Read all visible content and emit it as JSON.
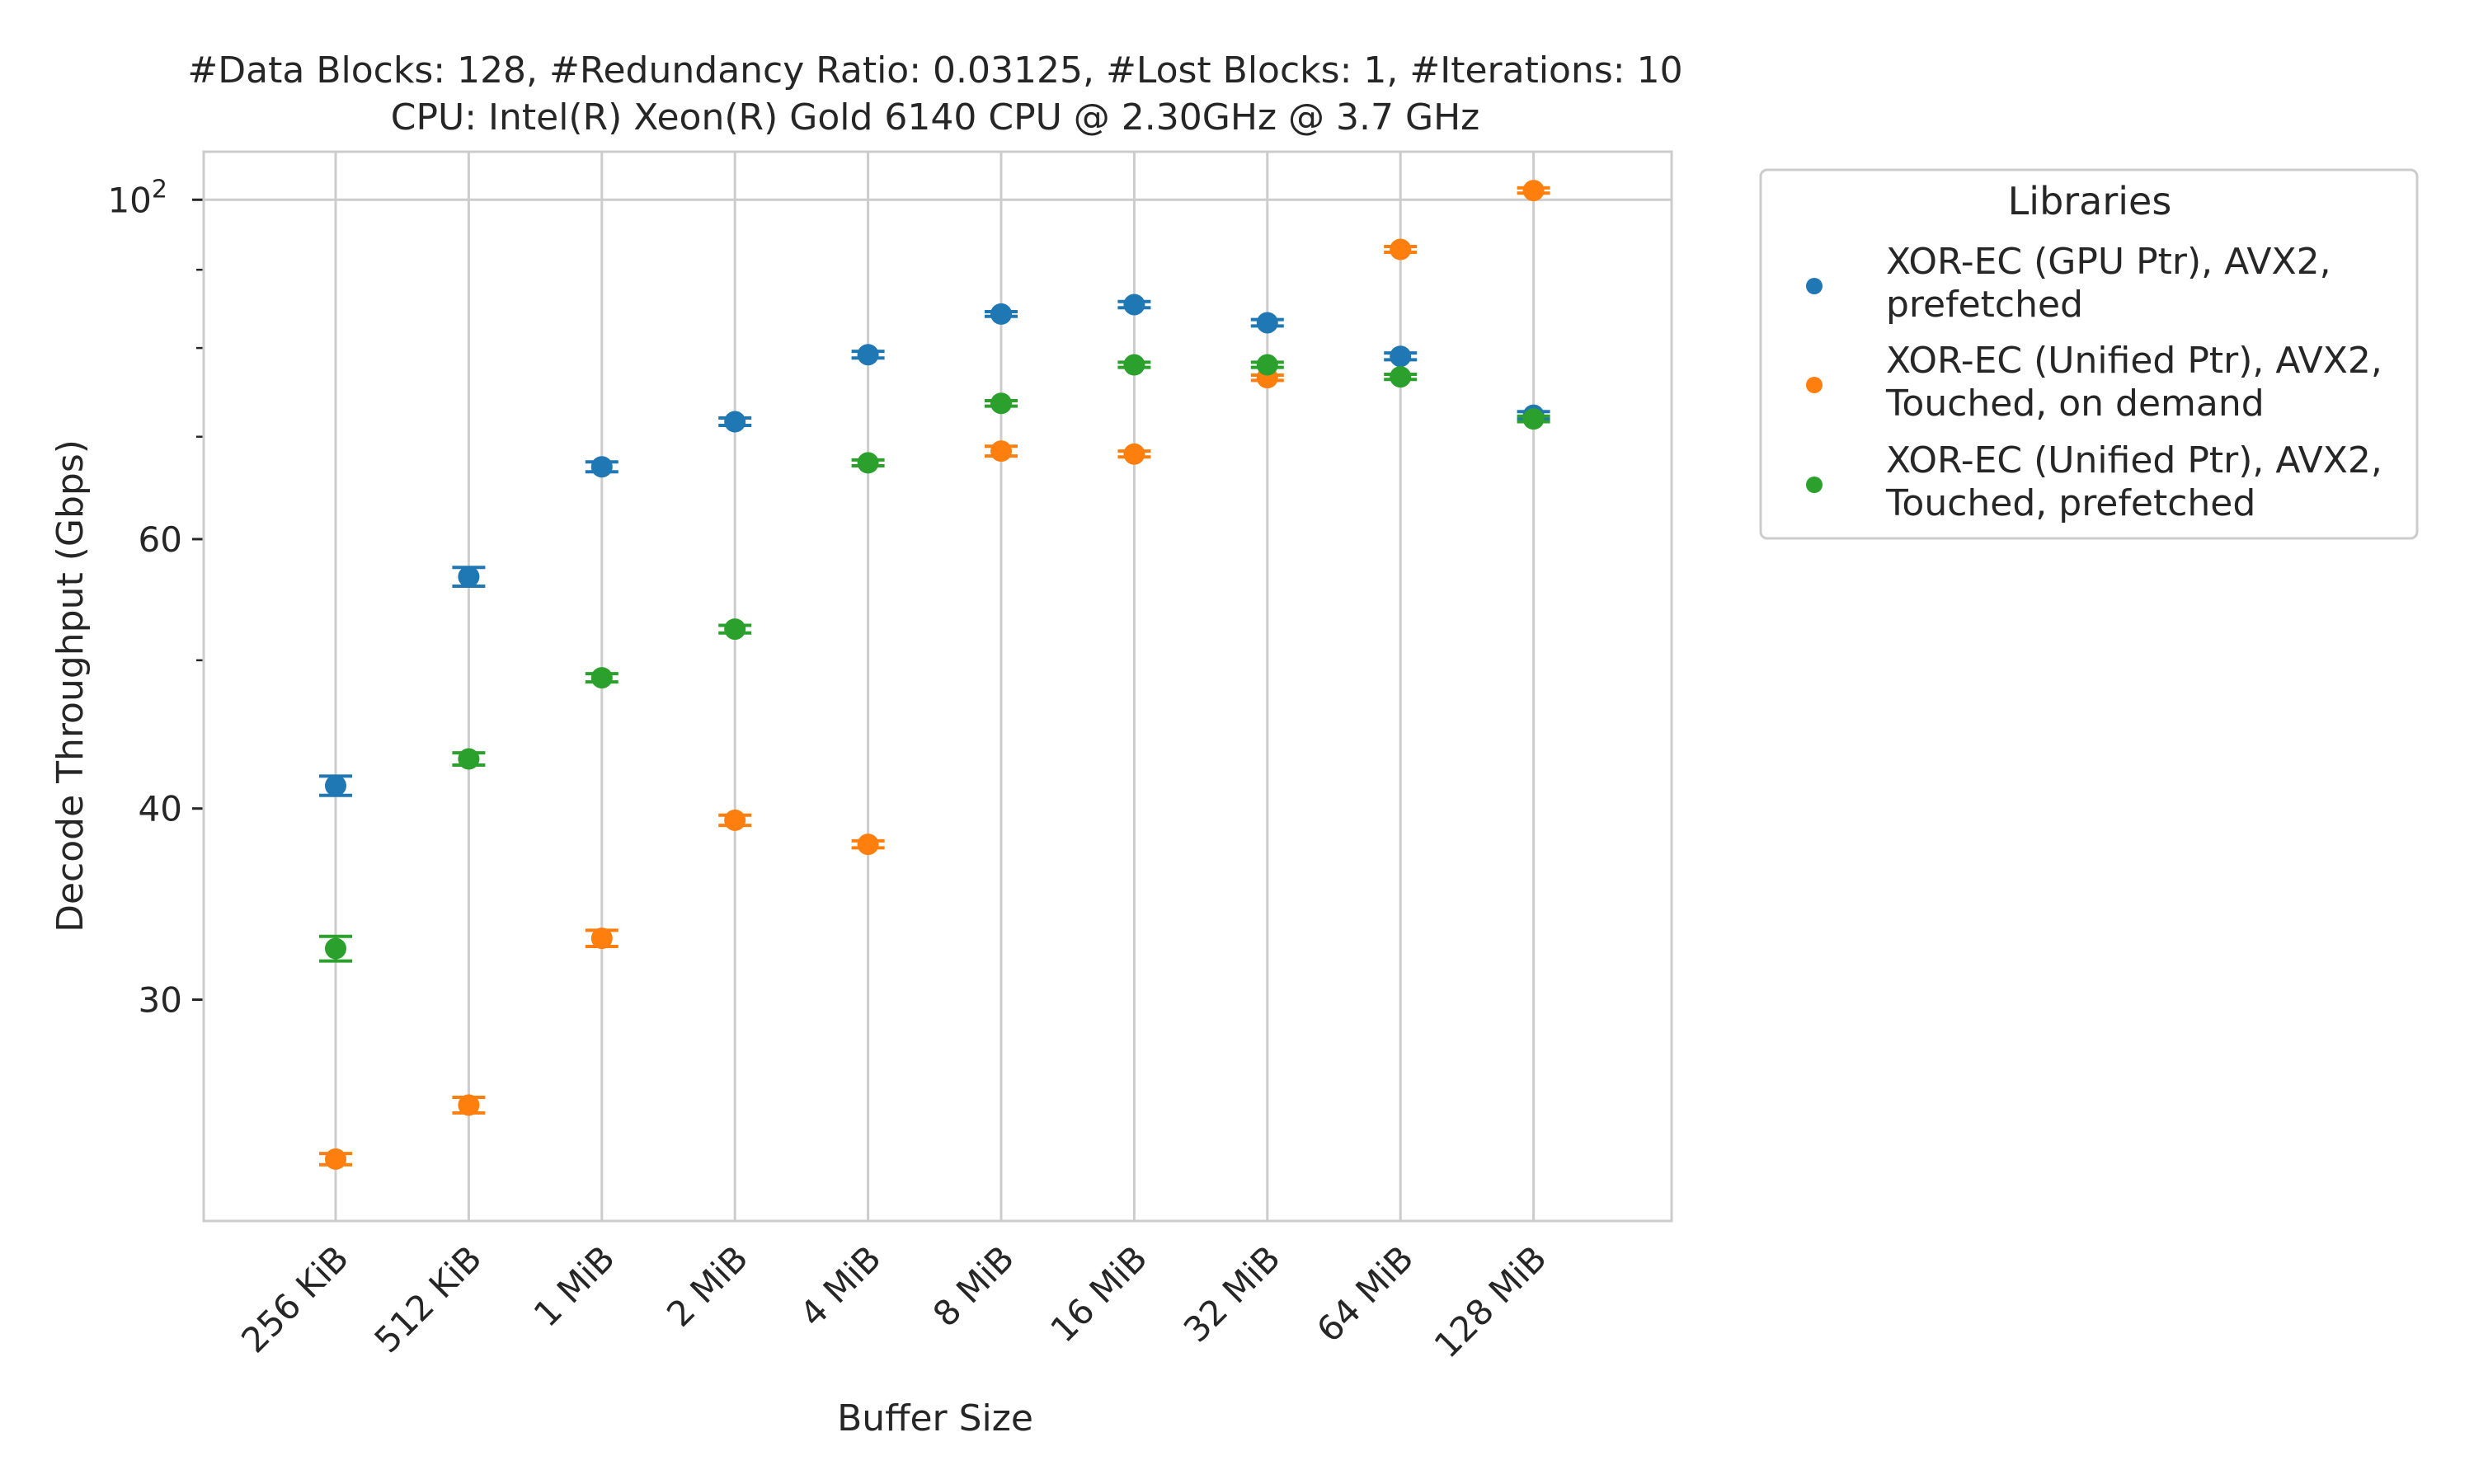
{
  "chart_data": {
    "type": "scatter",
    "title_line1": "#Data Blocks: 128, #Redundancy Ratio: 0.03125, #Lost Blocks: 1, #Iterations: 10",
    "title_line2": "CPU: Intel(R) Xeon(R) Gold 6140 CPU @ 2.30GHz @ 3.7 GHz",
    "xlabel": "Buffer Size",
    "ylabel": "Decode Throughput (Gbps)",
    "yscale": "log",
    "ylim": [
      21.5,
      107.5
    ],
    "grid": true,
    "categories": [
      "256 KiB",
      "512 KiB",
      "1 MiB",
      "2 MiB",
      "4 MiB",
      "8 MiB",
      "16 MiB",
      "32 MiB",
      "64 MiB",
      "128 MiB"
    ],
    "yticks": [
      {
        "value": 100,
        "base": "10",
        "exp": "2"
      },
      {
        "value": 60,
        "label": "60"
      },
      {
        "value": 40,
        "label": "40"
      },
      {
        "value": 30,
        "label": "30"
      }
    ],
    "minor_yticks": [
      90,
      80,
      70,
      50
    ],
    "legend": {
      "title": "Libraries",
      "placement": "outside-right"
    },
    "series": [
      {
        "name_lines": [
          "XOR-EC (GPU Ptr), AVX2,",
          "prefetched"
        ],
        "color": "#1f77b4",
        "values": [
          41.4,
          56.7,
          66.9,
          71.6,
          79.2,
          84.2,
          85.4,
          83.1,
          79.0,
          72.3
        ],
        "errors": [
          0.6,
          0.8,
          0.5,
          0.4,
          0.4,
          0.3,
          0.4,
          0.4,
          0.4,
          0.4
        ]
      },
      {
        "name_lines": [
          "XOR-EC (Unified Ptr), AVX2,",
          "Touched, on demand"
        ],
        "color": "#ff7f0e",
        "values": [
          23.6,
          25.6,
          32.9,
          39.3,
          37.9,
          68.5,
          68.2,
          76.5,
          92.8,
          101.4
        ],
        "errors": [
          0.2,
          0.3,
          0.4,
          0.3,
          0.2,
          0.5,
          0.3,
          0.3,
          0.4,
          0.4
        ]
      },
      {
        "name_lines": [
          "XOR-EC (Unified Ptr), AVX2,",
          "Touched, prefetched"
        ],
        "color": "#2ca02c",
        "values": [
          32.4,
          43.1,
          48.7,
          52.4,
          67.3,
          73.6,
          78.0,
          78.0,
          76.6,
          71.9
        ],
        "errors": [
          0.6,
          0.4,
          0.3,
          0.3,
          0.3,
          0.3,
          0.3,
          0.3,
          0.3,
          0.3
        ]
      }
    ]
  }
}
